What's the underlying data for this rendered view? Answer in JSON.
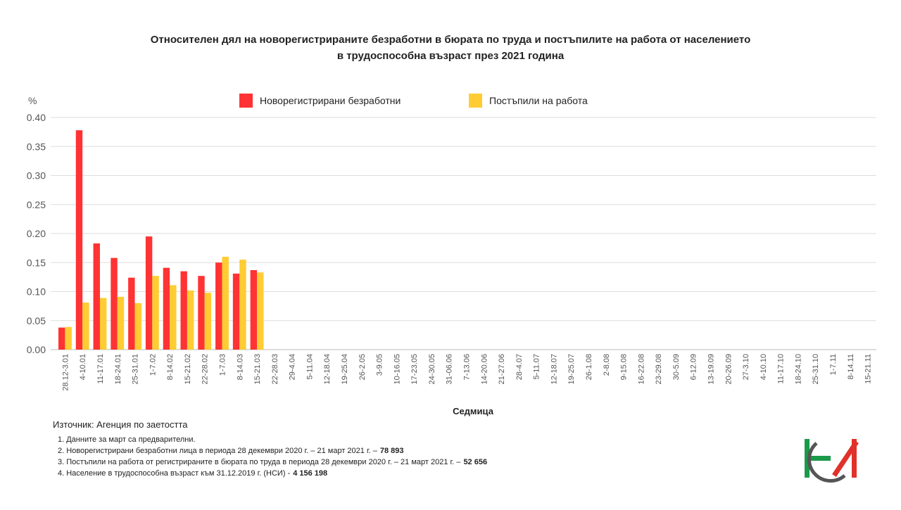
{
  "chart_data": {
    "type": "bar",
    "title": [
      "Относителен дял на новорегистрираните безработни в бюрата по труда и постъпилите на работа от населението",
      "в трудоспособна възраст през 2021 година"
    ],
    "y_label": "%",
    "x_label": "Седмица",
    "categories": [
      "28.12-3.01",
      "4-10.01",
      "11-17.01",
      "18-24.01",
      "25-31.01",
      "1-7.02",
      "8-14.02",
      "15-21.02",
      "22-28.02",
      "1-7.03",
      "8-14.03",
      "15-21.03",
      "22-28.03",
      "29-4.04",
      "5-11.04",
      "12-18.04",
      "19-25.04",
      "26-2.05",
      "3-9.05",
      "10-16.05",
      "17-23.05",
      "24-30.05",
      "31-06.06",
      "7-13.06",
      "14-20.06",
      "21-27.06",
      "28-4.07",
      "5-11.07",
      "12-18.07",
      "19-25.07",
      "26-1.08",
      "2-8.08",
      "9-15.08",
      "16-22.08",
      "23-29.08",
      "30-5.09",
      "6-12.09",
      "13-19.09",
      "20-26.09",
      "27-3.10",
      "4-10.10",
      "11-17.10",
      "18-24.10",
      "25-31.10",
      "1-7.11",
      "8-14.11",
      "15-21.11"
    ],
    "series": [
      {
        "name": "Новорегистрирани безработни",
        "color": "#ff3333",
        "values": [
          0.038,
          0.378,
          0.183,
          0.158,
          0.124,
          0.195,
          0.141,
          0.135,
          0.127,
          0.15,
          0.131,
          0.137,
          null,
          null,
          null,
          null,
          null,
          null,
          null,
          null,
          null,
          null,
          null,
          null,
          null,
          null,
          null,
          null,
          null,
          null,
          null,
          null,
          null,
          null,
          null,
          null,
          null,
          null,
          null,
          null,
          null,
          null,
          null,
          null,
          null,
          null,
          null
        ]
      },
      {
        "name": "Постъпили на работа",
        "color": "#ffcc33",
        "values": [
          0.039,
          0.081,
          0.089,
          0.091,
          0.08,
          0.127,
          0.111,
          0.102,
          0.098,
          0.16,
          0.155,
          0.133,
          null,
          null,
          null,
          null,
          null,
          null,
          null,
          null,
          null,
          null,
          null,
          null,
          null,
          null,
          null,
          null,
          null,
          null,
          null,
          null,
          null,
          null,
          null,
          null,
          null,
          null,
          null,
          null,
          null,
          null,
          null,
          null,
          null,
          null,
          null
        ]
      }
    ],
    "ylim": [
      0,
      0.4
    ],
    "yticks": [
      {
        "value": 0,
        "label": "0.00"
      },
      {
        "value": 0.05,
        "label": "0.05"
      },
      {
        "value": 0.1,
        "label": "0.10"
      },
      {
        "value": 0.15,
        "label": "0.15"
      },
      {
        "value": 0.2,
        "label": "0.20"
      },
      {
        "value": 0.25,
        "label": "0.25"
      },
      {
        "value": 0.3,
        "label": "0.30"
      },
      {
        "value": 0.35,
        "label": "0.35"
      },
      {
        "value": 0.4,
        "label": "0.40"
      }
    ],
    "grid": true,
    "legend": "top",
    "source": "Източник: Агенция по заетостта",
    "notes": [
      {
        "text": "1.  Данните за март са предварителни."
      },
      {
        "text": "2.  Новорегистрирани безработни лица в периода 28 декември  2020 г. – 21 март 2021 г. –",
        "bold": "78 893"
      },
      {
        "text": "3.  Постъпили на работа от регистрираните в бюрата по труда в периода 28 декември  2020 г. – 21 март 2021 г. –",
        "bold": "52 656"
      },
      {
        "text": "4.  Население в трудоспособна възраст към 31.12.2019 г. (НСИ)  -",
        "bold": "4 156 198"
      }
    ]
  }
}
